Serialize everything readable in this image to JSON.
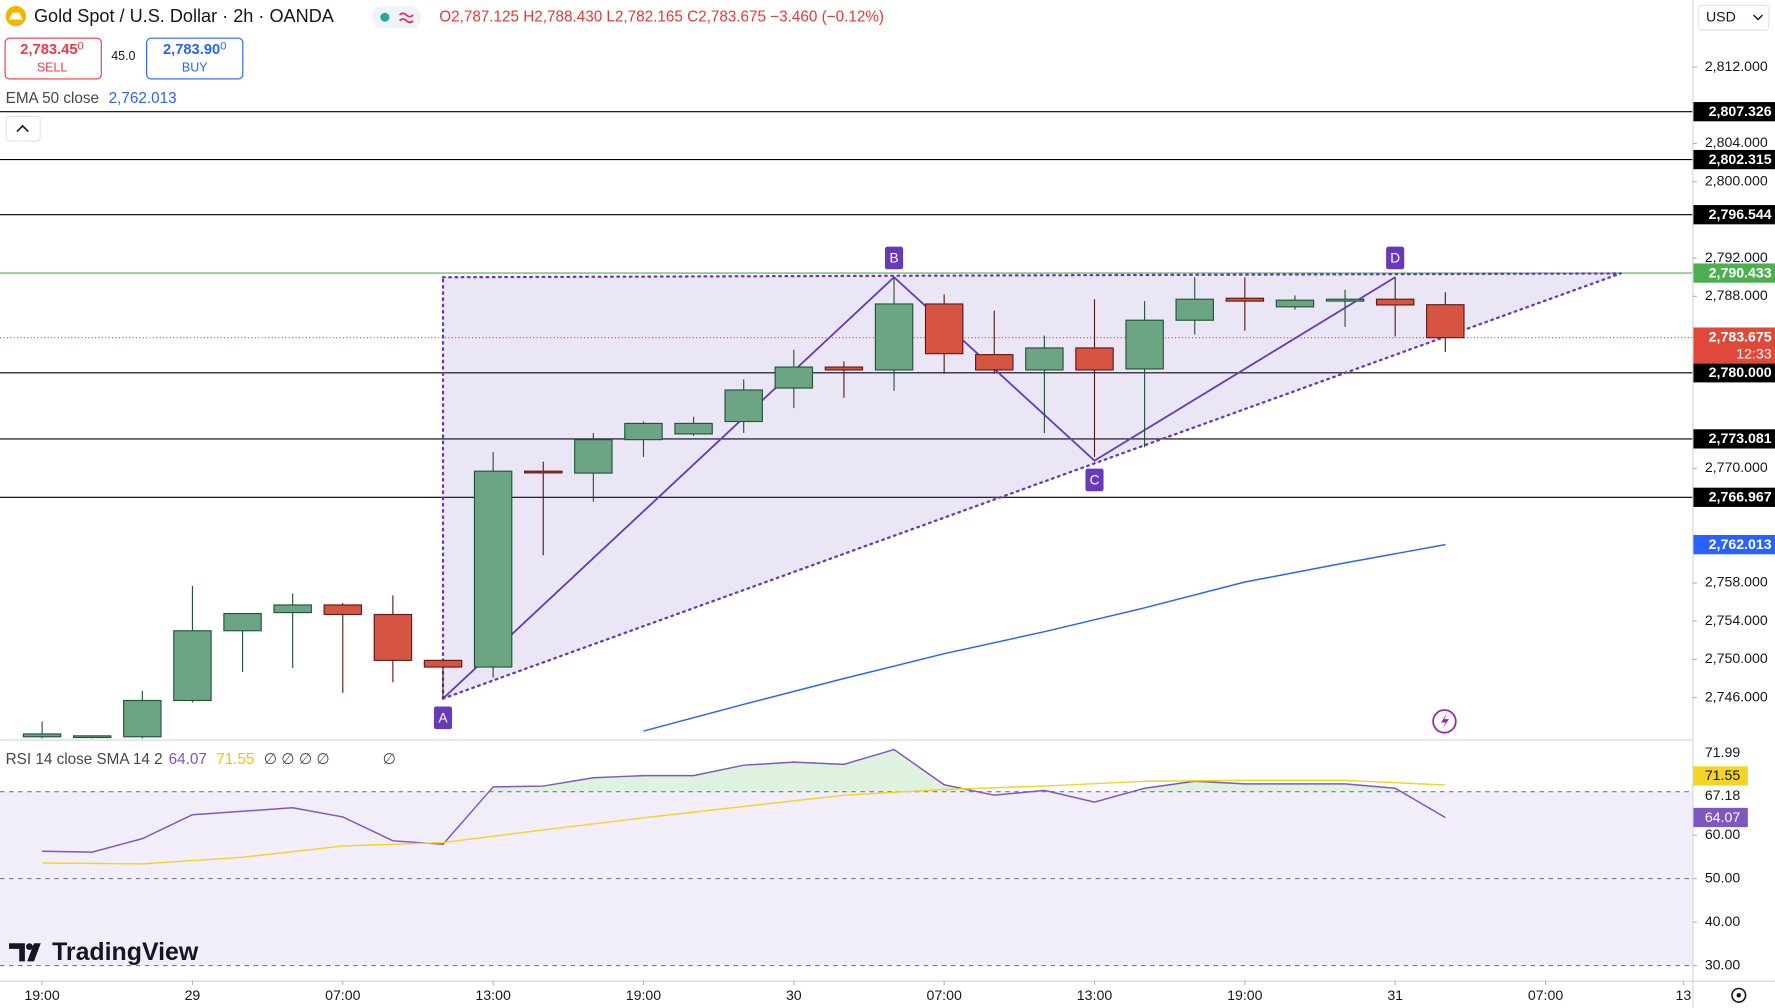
{
  "header": {
    "symbol": "Gold Spot / U.S. Dollar · 2h · OANDA",
    "ohlc": "O2,787.125 H2,788.430 L2,782.165 C2,783.675 −3.460 (−0.12%)",
    "sell": {
      "price": "2,783.45",
      "price_sup": "0",
      "label": "SELL"
    },
    "spread": "45.0",
    "buy": {
      "price": "2,783.90",
      "price_sup": "0",
      "label": "BUY"
    },
    "currency": "USD",
    "logo": "TradingView"
  },
  "chart_data": [
    {
      "type": "candlestick",
      "xlim": [
        -0.84,
        32.93
      ],
      "ylim": [
        2741.74,
        2818.99
      ],
      "xticks": [
        {
          "value": 0,
          "label": "19:00"
        },
        {
          "value": 3,
          "label": "29"
        },
        {
          "value": 6,
          "label": "07:00"
        },
        {
          "value": 9,
          "label": "13:00"
        },
        {
          "value": 12,
          "label": "19:00"
        },
        {
          "value": 15,
          "label": "30"
        },
        {
          "value": 18,
          "label": "07:00"
        },
        {
          "value": 21,
          "label": "13:00"
        },
        {
          "value": 24,
          "label": "19:00"
        },
        {
          "value": 27,
          "label": "31"
        },
        {
          "value": 30,
          "label": "07:00"
        },
        {
          "value": 32.75,
          "label": "13"
        }
      ],
      "yticks": [
        {
          "value": 2812,
          "label": "2,812.000"
        },
        {
          "value": 2804,
          "label": "2,804.000"
        },
        {
          "value": 2800,
          "label": "2,800.000"
        },
        {
          "value": 2792,
          "label": "2,792.000"
        },
        {
          "value": 2788,
          "label": "2,788.000"
        },
        {
          "value": 2770,
          "label": "2,770.000"
        },
        {
          "value": 2758,
          "label": "2,758.000"
        },
        {
          "value": 2754,
          "label": "2,754.000"
        },
        {
          "value": 2750,
          "label": "2,750.000"
        },
        {
          "value": 2746,
          "label": "2,746.000"
        }
      ],
      "up_color": "#6ba583",
      "down_color": "#d75442",
      "x": [
        0,
        1,
        2,
        3,
        4,
        5,
        6,
        7,
        8,
        9,
        10,
        11,
        12,
        13,
        14,
        15,
        16,
        17,
        18,
        19,
        20,
        21,
        22,
        23,
        24,
        25,
        26,
        27,
        28
      ],
      "open": [
        2741.9,
        2741.9,
        2741.9,
        2745.7,
        2753.0,
        2754.9,
        2755.7,
        2754.7,
        2749.9,
        2749.2,
        2769.7,
        2769.5,
        2773.0,
        2773.6,
        2774.9,
        2778.4,
        2780.6,
        2780.3,
        2787.2,
        2781.9,
        2780.3,
        2782.6,
        2780.4,
        2785.5,
        2787.8,
        2786.9,
        2787.5,
        2787.7,
        2787.125
      ],
      "high": [
        2743.5,
        2742.0,
        2746.7,
        2757.7,
        2754.8,
        2756.9,
        2755.9,
        2756.7,
        2750.0,
        2771.7,
        2770.7,
        2773.7,
        2774.9,
        2775.4,
        2779.3,
        2782.4,
        2781.2,
        2790.0,
        2788.2,
        2786.5,
        2783.9,
        2787.7,
        2787.5,
        2790.0,
        2790.0,
        2788.1,
        2788.7,
        2790.0,
        2788.43
      ],
      "low": [
        2741.7,
        2741.7,
        2741.7,
        2745.5,
        2748.7,
        2749.1,
        2746.5,
        2747.6,
        2745.9,
        2748.1,
        2760.9,
        2766.5,
        2771.2,
        2773.4,
        2773.7,
        2776.3,
        2777.4,
        2778.1,
        2779.9,
        2779.9,
        2773.7,
        2771.2,
        2772.2,
        2784.0,
        2784.4,
        2786.6,
        2784.8,
        2783.8,
        2782.165
      ],
      "close": [
        2742.2,
        2742.0,
        2745.7,
        2753.0,
        2754.8,
        2755.7,
        2754.7,
        2749.9,
        2749.2,
        2769.7,
        2769.6,
        2773.0,
        2774.7,
        2774.7,
        2778.2,
        2780.6,
        2780.3,
        2787.2,
        2782.0,
        2780.3,
        2782.6,
        2780.3,
        2785.5,
        2787.7,
        2787.5,
        2787.6,
        2787.7,
        2787.1,
        2783.675
      ],
      "ema": {
        "name": "EMA 50 close",
        "color": "#2962ff",
        "x": [
          12,
          14,
          16,
          18,
          20,
          22,
          24,
          26,
          28
        ],
        "values": [
          2742.5,
          2745.3,
          2748.0,
          2750.6,
          2752.9,
          2755.4,
          2758.1,
          2760.1,
          2762.013
        ],
        "value_labels": [
          null,
          null,
          null,
          null,
          null,
          null,
          null,
          null,
          "2,762.013"
        ]
      },
      "levels": [
        {
          "value": 2807.326,
          "label": "2,807.326",
          "color": "#000000"
        },
        {
          "value": 2802.315,
          "label": "2,802.315",
          "color": "#000000"
        },
        {
          "value": 2796.544,
          "label": "2,796.544",
          "color": "#000000"
        },
        {
          "value": 2790.433,
          "label": "2,790.433",
          "color": "#4caf50"
        },
        {
          "value": 2780.0,
          "label": "2,780.000",
          "color": "#000000"
        },
        {
          "value": 2773.081,
          "label": "2,773.081",
          "color": "#000000"
        },
        {
          "value": 2766.967,
          "label": "2,766.967",
          "color": "#000000"
        }
      ],
      "last_price": {
        "value": 2783.675,
        "label": "2,783.675",
        "countdown": "12:33",
        "color": "#e0493a"
      },
      "pattern": {
        "labels": [
          "A",
          "B",
          "C",
          "D"
        ],
        "x": [
          8,
          17,
          21,
          27
        ],
        "y": [
          2745.9,
          2790.0,
          2770.8,
          2790.0
        ],
        "apex_x": 31.5,
        "apex_y": 2790.4,
        "color": "#673ab7"
      }
    },
    {
      "type": "line",
      "title": "RSI 14 close SMA 14 2",
      "legend_extra": [
        "∅ ∅ ∅ ∅",
        "∅"
      ],
      "scale_labels": [
        "71.99",
        "67.18"
      ],
      "ylim": [
        26.8,
        81.5
      ],
      "yticks": [
        {
          "value": 60,
          "label": "60.00"
        },
        {
          "value": 50,
          "label": "50.00"
        },
        {
          "value": 40,
          "label": "40.00"
        },
        {
          "value": 30,
          "label": "30.00"
        }
      ],
      "bands": [
        70,
        50,
        30
      ],
      "series": [
        {
          "color": "#7e57c2",
          "x": [
            0,
            1,
            2,
            3,
            4,
            5,
            6,
            7,
            8,
            9,
            10,
            11,
            12,
            13,
            14,
            15,
            16,
            17,
            18,
            19,
            20,
            21,
            22,
            23,
            24,
            25,
            26,
            27,
            28
          ],
          "values": [
            56.3,
            56.1,
            59.2,
            64.7,
            65.5,
            66.3,
            64.2,
            58.7,
            57.9,
            71.1,
            71.3,
            73.2,
            73.7,
            73.7,
            76.1,
            76.8,
            76.3,
            79.7,
            71.6,
            69.2,
            70.3,
            67.6,
            70.8,
            72.4,
            71.8,
            71.8,
            71.8,
            70.8,
            64.07
          ]
        },
        {
          "color": "#f5d327",
          "x": [
            0,
            2,
            4,
            6,
            8,
            10,
            12,
            14,
            16,
            18,
            20,
            22,
            24,
            26,
            28
          ],
          "values": [
            53.6,
            53.4,
            54.9,
            57.5,
            58.3,
            61.2,
            64.0,
            66.6,
            69.2,
            70.5,
            71.3,
            72.4,
            72.6,
            72.6,
            71.55
          ]
        }
      ]
    }
  ]
}
